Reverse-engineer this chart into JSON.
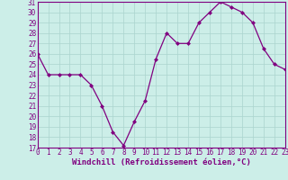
{
  "x": [
    0,
    1,
    2,
    3,
    4,
    5,
    6,
    7,
    8,
    9,
    10,
    11,
    12,
    13,
    14,
    15,
    16,
    17,
    18,
    19,
    20,
    21,
    22,
    23
  ],
  "y": [
    26,
    24,
    24,
    24,
    24,
    23,
    21,
    18.5,
    17.2,
    19.5,
    21.5,
    25.5,
    28,
    27,
    27,
    29,
    30,
    31,
    30.5,
    30,
    29,
    26.5,
    25,
    24.5
  ],
  "xlim": [
    0,
    23
  ],
  "ylim": [
    17,
    31
  ],
  "yticks": [
    17,
    18,
    19,
    20,
    21,
    22,
    23,
    24,
    25,
    26,
    27,
    28,
    29,
    30,
    31
  ],
  "xticks": [
    0,
    1,
    2,
    3,
    4,
    5,
    6,
    7,
    8,
    9,
    10,
    11,
    12,
    13,
    14,
    15,
    16,
    17,
    18,
    19,
    20,
    21,
    22,
    23
  ],
  "xlabel": "Windchill (Refroidissement éolien,°C)",
  "line_color": "#800080",
  "marker": "D",
  "marker_size": 2.0,
  "bg_color": "#cceee8",
  "grid_color": "#aad4ce",
  "tick_fontsize": 5.5,
  "label_fontsize": 6.5
}
